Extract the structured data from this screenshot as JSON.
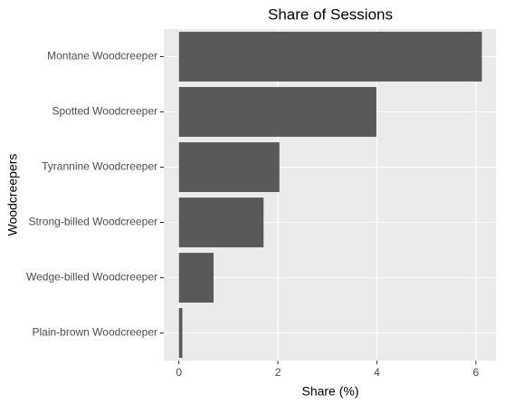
{
  "chart_data": {
    "type": "bar",
    "orientation": "horizontal",
    "title": "Share of Sessions",
    "x_label": "Share (%)",
    "y_label": "Woodcreepers",
    "categories": [
      "Montane Woodcreeper",
      "Spotted Woodcreeper",
      "Tyrannine Woodcreeper",
      "Strong-billed Woodcreeper",
      "Wedge-billed Woodcreeper",
      "Plain-brown Woodcreeper"
    ],
    "values": [
      6.12,
      3.99,
      2.03,
      1.71,
      0.7,
      0.07
    ],
    "color": "#595959",
    "xlim": [
      -0.305,
      6.405
    ],
    "xticks": [
      0,
      2,
      4,
      6
    ],
    "grid": true
  }
}
